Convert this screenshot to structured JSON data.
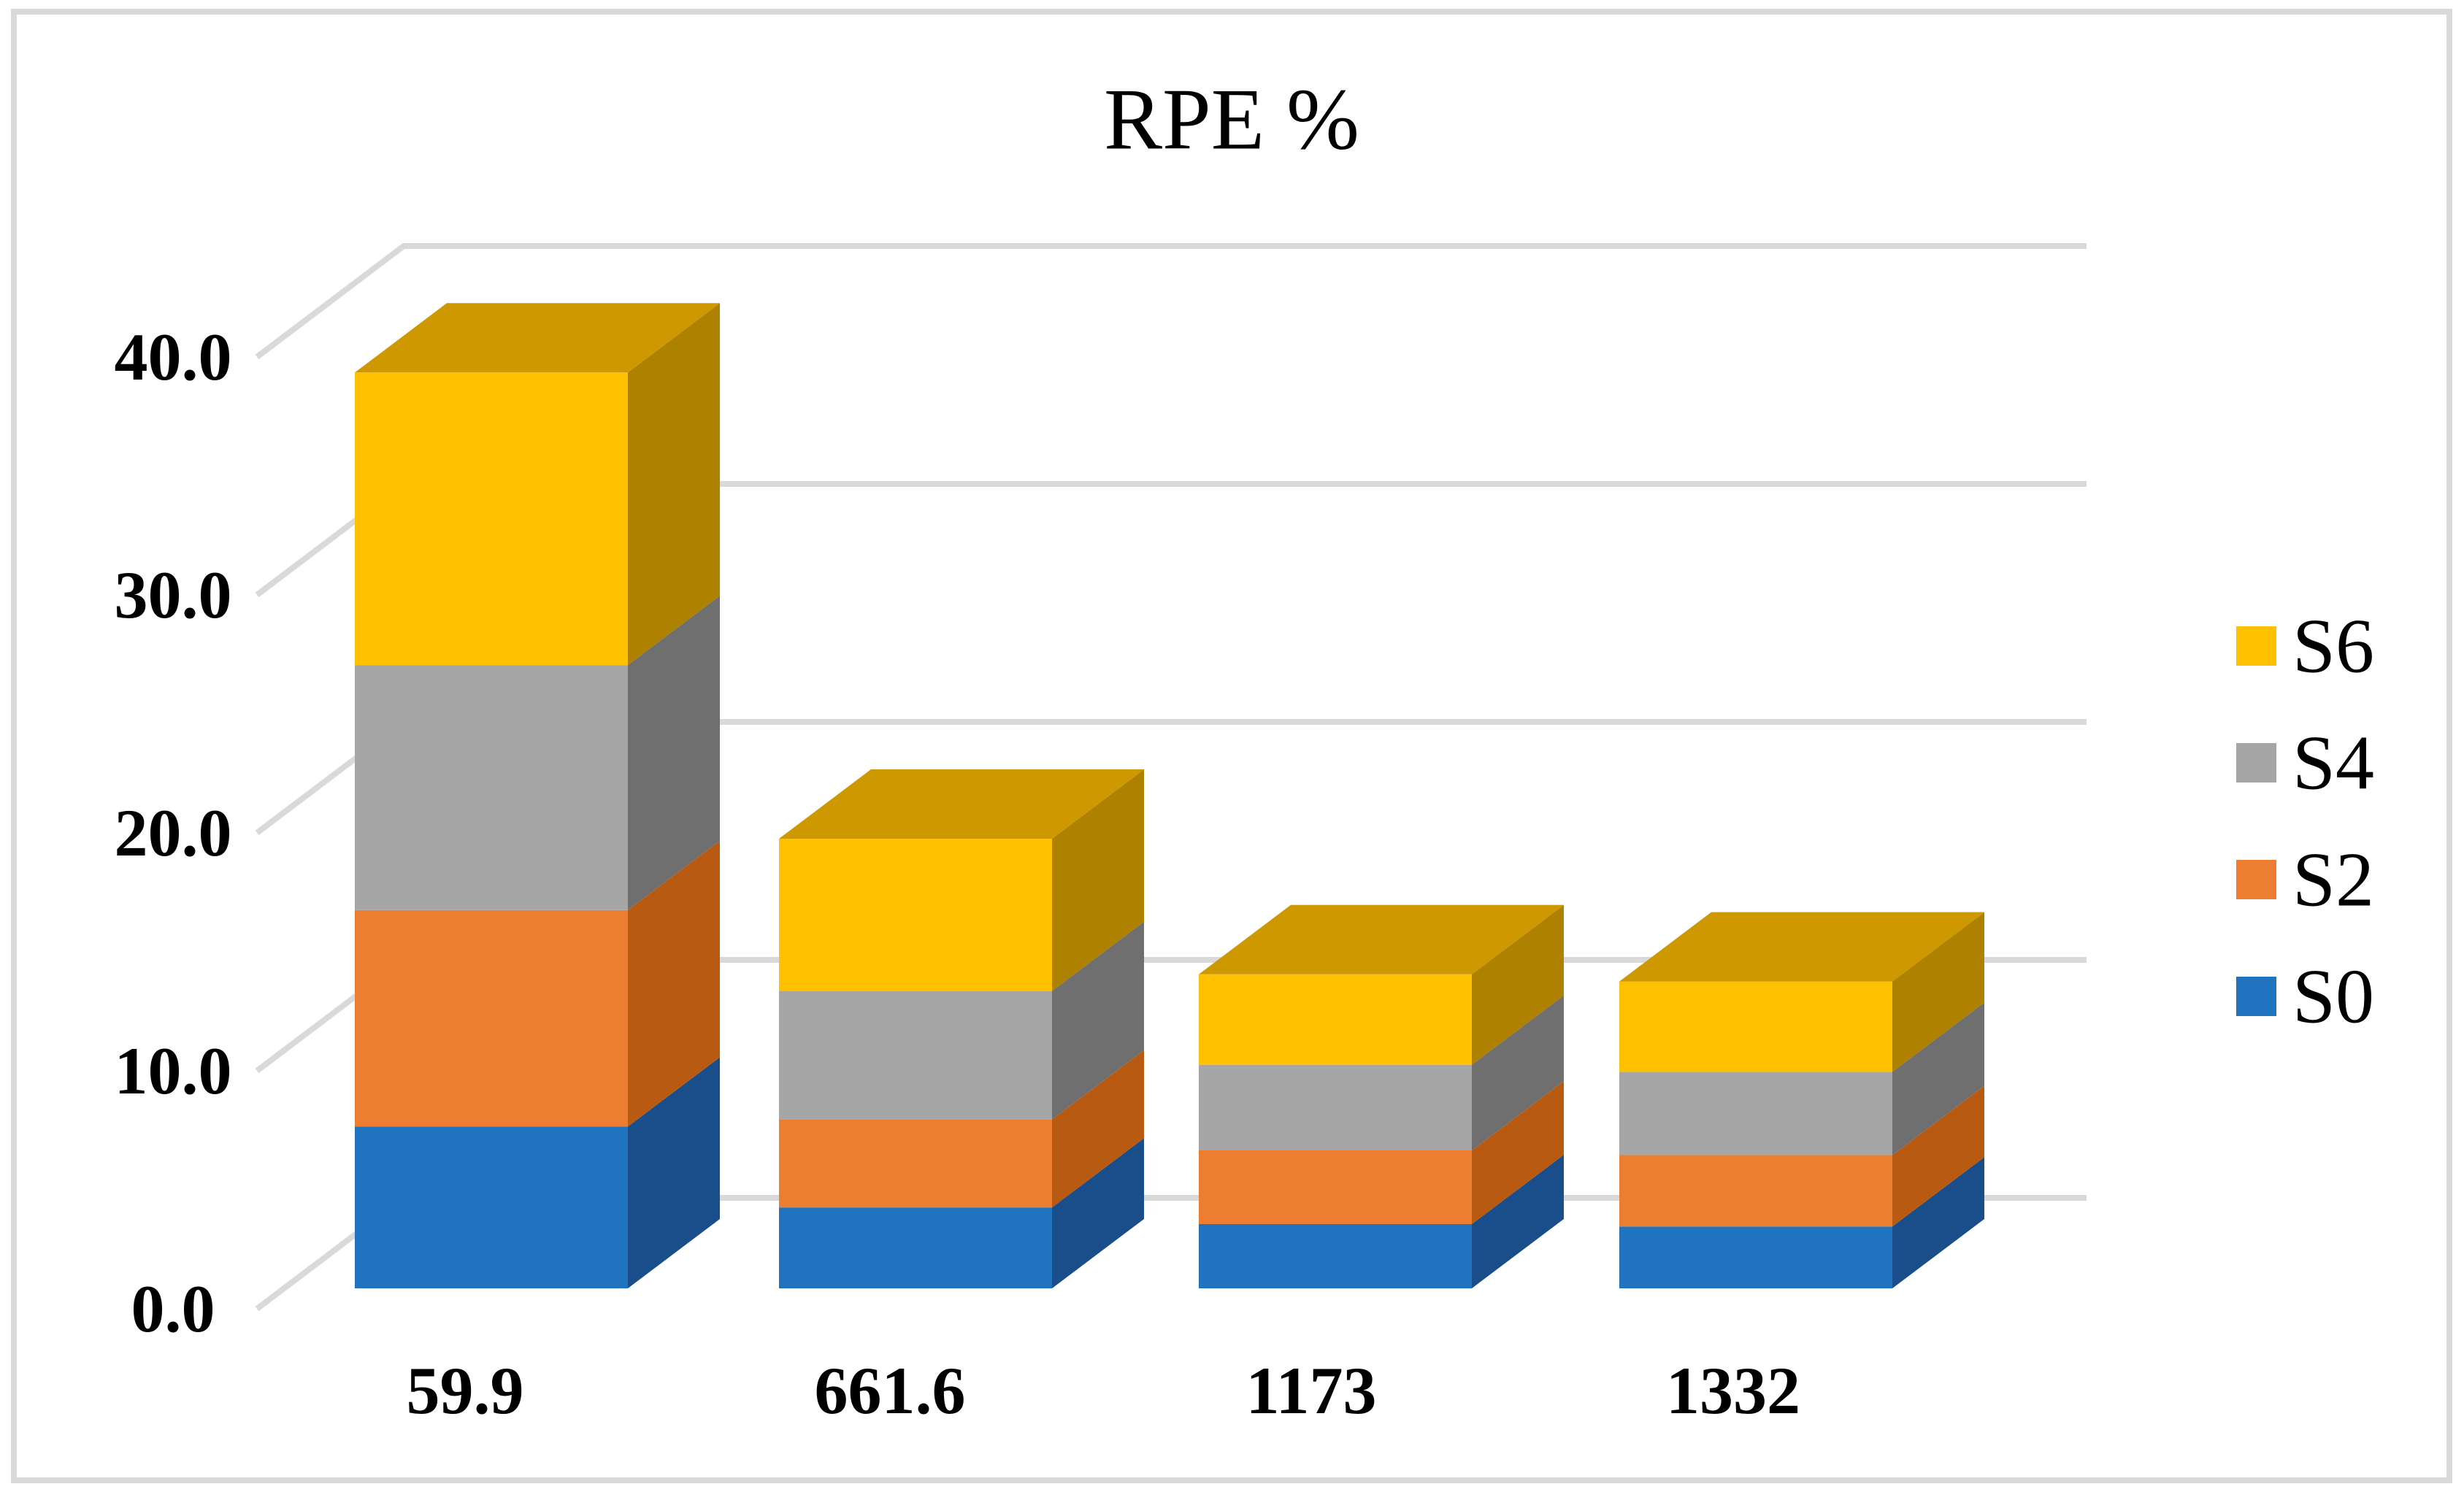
{
  "chart_data": {
    "type": "bar",
    "variant": "3d-stacked-column",
    "title": "RPE %",
    "categories": [
      "59.9",
      "661.6",
      "1173",
      "1332"
    ],
    "series": [
      {
        "name": "S0",
        "color": "#1F73BF",
        "side_color": "#1A4E8A",
        "values": [
          6.8,
          3.4,
          2.7,
          2.6
        ]
      },
      {
        "name": "S2",
        "color": "#ED7D31",
        "side_color": "#B85A12",
        "values": [
          9.1,
          3.7,
          3.1,
          3.0
        ]
      },
      {
        "name": "S4",
        "color": "#A6A6A6",
        "side_color": "#6F6F6F",
        "values": [
          10.3,
          5.4,
          3.6,
          3.5
        ]
      },
      {
        "name": "S6",
        "color": "#FFC000",
        "side_color": "#AE8200",
        "top_color": "#CE9800",
        "values": [
          12.3,
          6.4,
          3.8,
          3.8
        ]
      }
    ],
    "totals": [
      38.4,
      18.9,
      13.2,
      12.9
    ],
    "y_axis": {
      "min": 0,
      "max": 40,
      "major_unit": 10,
      "ticks": [
        "0.0",
        "10.0",
        "20.0",
        "30.0",
        "40.0"
      ]
    },
    "legend_items": [
      {
        "label": "S6",
        "color": "#FFC000"
      },
      {
        "label": "S4",
        "color": "#A6A6A6"
      },
      {
        "label": "S2",
        "color": "#ED7D31"
      },
      {
        "label": "S0",
        "color": "#1F73BF"
      }
    ],
    "legend_position": "right",
    "gridlines": true,
    "gridline_color": "#D9D9D9",
    "border_color": "#D9D9D9",
    "background": "#FFFFFF",
    "text_color": "#000000"
  }
}
